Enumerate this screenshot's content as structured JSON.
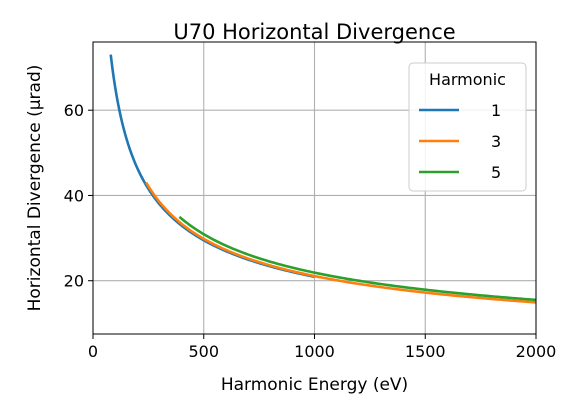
{
  "chart_data": {
    "type": "line",
    "title": "U70 Horizontal Divergence",
    "xlabel": "Harmonic Energy (eV)",
    "ylabel": "Horizontal Divergence (μrad)",
    "xlim": [
      0,
      2000
    ],
    "ylim": [
      7.5,
      76
    ],
    "xticks": [
      0,
      500,
      1000,
      1500,
      2000
    ],
    "yticks": [
      20,
      40,
      60
    ],
    "grid": true,
    "legend": {
      "title": "Harmonic",
      "position": "top-right"
    },
    "series": [
      {
        "name": "1",
        "color": "#1f77b4",
        "x_range": [
          80,
          1000
        ],
        "points": [
          [
            80,
            72.0
          ],
          [
            150,
            54.0
          ],
          [
            300,
            38.5
          ],
          [
            500,
            29.6
          ],
          [
            750,
            24.1
          ],
          [
            1000,
            20.7
          ]
        ]
      },
      {
        "name": "3",
        "color": "#ff7f0e",
        "x_range": [
          240,
          2000
        ],
        "points": [
          [
            240,
            43.0
          ],
          [
            400,
            33.3
          ],
          [
            700,
            25.3
          ],
          [
            1000,
            21.1
          ],
          [
            1500,
            17.2
          ],
          [
            2000,
            14.9
          ]
        ]
      },
      {
        "name": "5",
        "color": "#2ca02c",
        "x_range": [
          390,
          2000
        ],
        "points": [
          [
            390,
            35.0
          ],
          [
            600,
            28.2
          ],
          [
            1000,
            21.9
          ],
          [
            1500,
            17.9
          ],
          [
            2000,
            15.5
          ]
        ]
      }
    ]
  }
}
